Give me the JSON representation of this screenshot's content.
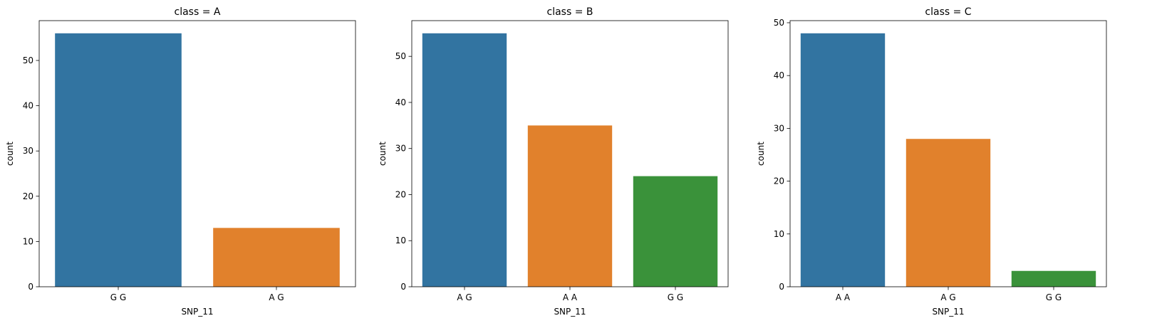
{
  "chart_data": [
    {
      "type": "bar",
      "title": "class = A",
      "xlabel": "SNP_11",
      "ylabel": "count",
      "categories": [
        "G G",
        "A G"
      ],
      "values": [
        56,
        13
      ],
      "colors": [
        "#3274a1",
        "#e1812c"
      ],
      "ylim": [
        0,
        58.8
      ],
      "yticks": [
        0,
        10,
        20,
        30,
        40,
        50
      ],
      "grid": false
    },
    {
      "type": "bar",
      "title": "class = B",
      "xlabel": "SNP_11",
      "ylabel": "count",
      "categories": [
        "A G",
        "A A",
        "G G"
      ],
      "values": [
        55,
        35,
        24
      ],
      "colors": [
        "#3274a1",
        "#e1812c",
        "#3a923a"
      ],
      "ylim": [
        0,
        57.75
      ],
      "yticks": [
        0,
        10,
        20,
        30,
        40,
        50
      ],
      "grid": false
    },
    {
      "type": "bar",
      "title": "class = C",
      "xlabel": "SNP_11",
      "ylabel": "count",
      "categories": [
        "A A",
        "A G",
        "G G"
      ],
      "values": [
        48,
        28,
        3
      ],
      "colors": [
        "#3274a1",
        "#e1812c",
        "#3a923a"
      ],
      "ylim": [
        0,
        50.4
      ],
      "yticks": [
        0,
        10,
        20,
        30,
        40,
        50
      ],
      "grid": false
    }
  ]
}
